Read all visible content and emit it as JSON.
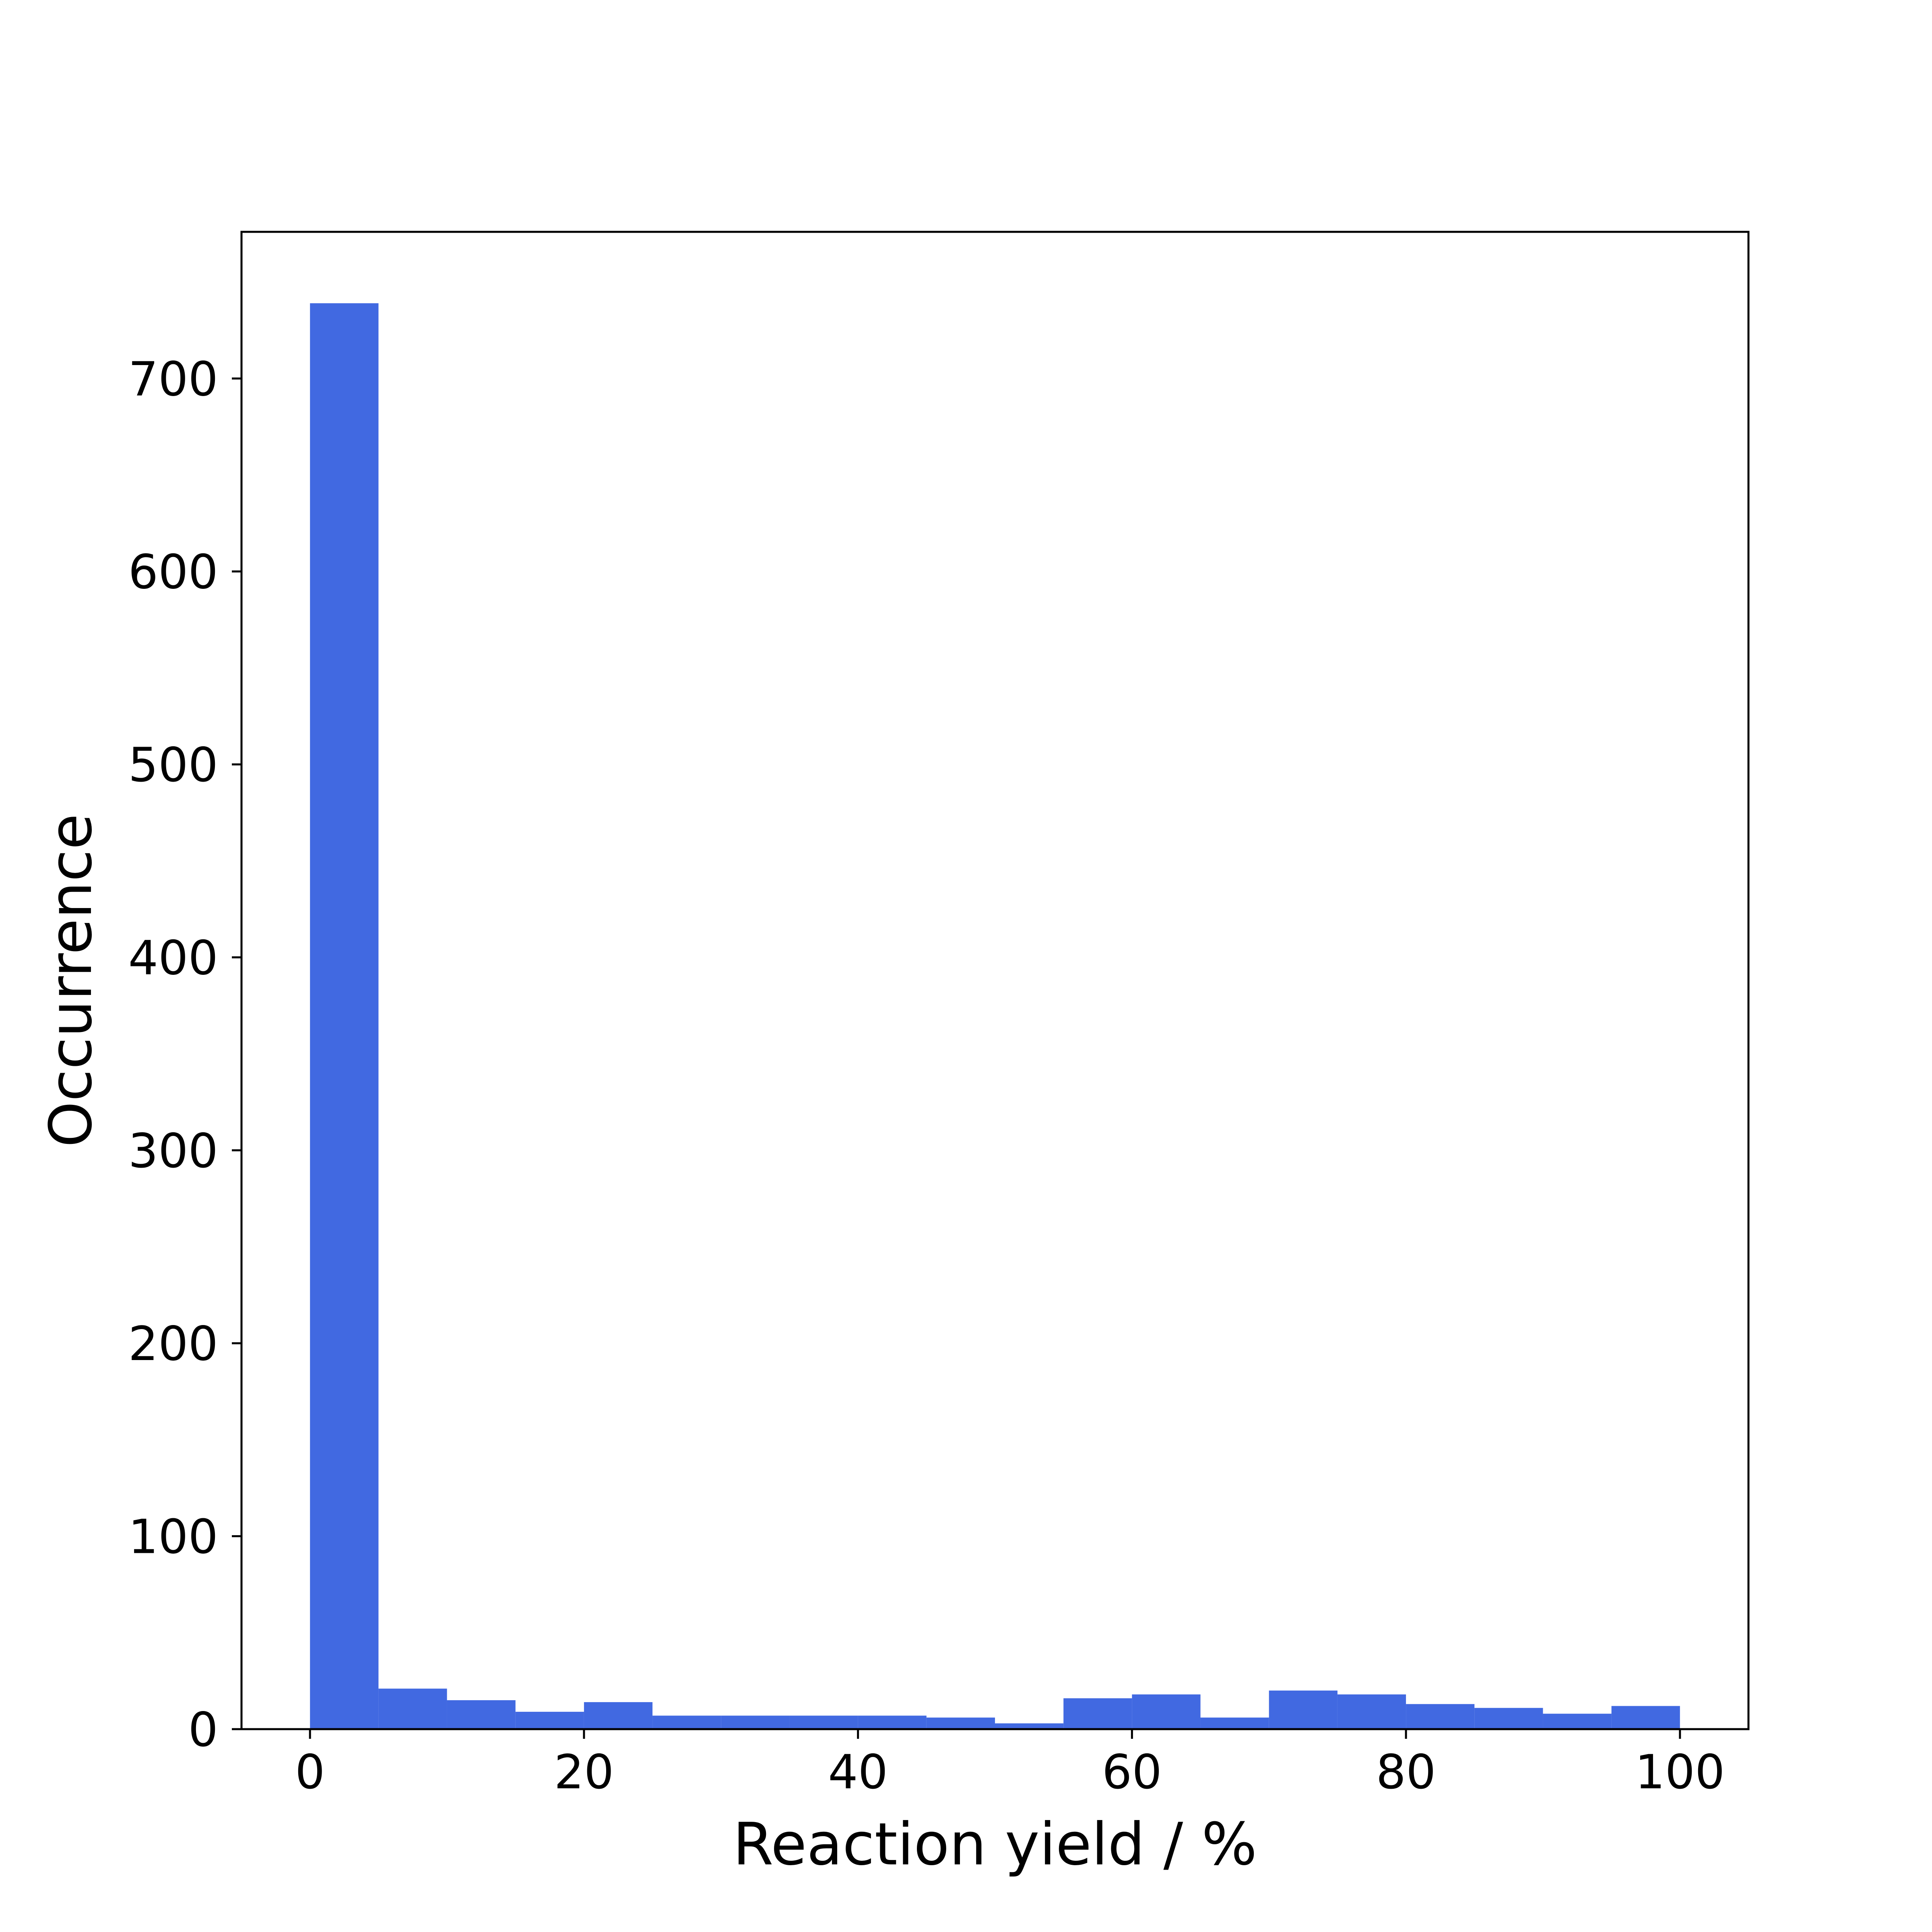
{
  "chart_data": {
    "type": "bar",
    "subtype": "histogram",
    "xlabel": "Reaction yield / %",
    "ylabel": "Occurrence",
    "bin_width": 5,
    "bins": [
      {
        "x0": 0,
        "x1": 5,
        "count": 739
      },
      {
        "x0": 5,
        "x1": 10,
        "count": 21
      },
      {
        "x0": 10,
        "x1": 15,
        "count": 15
      },
      {
        "x0": 15,
        "x1": 20,
        "count": 9
      },
      {
        "x0": 20,
        "x1": 25,
        "count": 14
      },
      {
        "x0": 25,
        "x1": 30,
        "count": 7
      },
      {
        "x0": 30,
        "x1": 35,
        "count": 7
      },
      {
        "x0": 35,
        "x1": 40,
        "count": 7
      },
      {
        "x0": 40,
        "x1": 45,
        "count": 7
      },
      {
        "x0": 45,
        "x1": 50,
        "count": 6
      },
      {
        "x0": 50,
        "x1": 55,
        "count": 3
      },
      {
        "x0": 55,
        "x1": 60,
        "count": 16
      },
      {
        "x0": 60,
        "x1": 65,
        "count": 18
      },
      {
        "x0": 65,
        "x1": 70,
        "count": 6
      },
      {
        "x0": 70,
        "x1": 75,
        "count": 20
      },
      {
        "x0": 75,
        "x1": 80,
        "count": 18
      },
      {
        "x0": 80,
        "x1": 85,
        "count": 13
      },
      {
        "x0": 85,
        "x1": 90,
        "count": 11
      },
      {
        "x0": 90,
        "x1": 95,
        "count": 8
      },
      {
        "x0": 95,
        "x1": 100,
        "count": 12
      }
    ],
    "xlim": [
      -5,
      105
    ],
    "ylim": [
      0,
      776
    ],
    "xticks": [
      0,
      20,
      40,
      60,
      80,
      100
    ],
    "yticks": [
      0,
      100,
      200,
      300,
      400,
      500,
      600,
      700
    ],
    "bar_color": "#4169e1",
    "grid": false,
    "legend": "none"
  }
}
